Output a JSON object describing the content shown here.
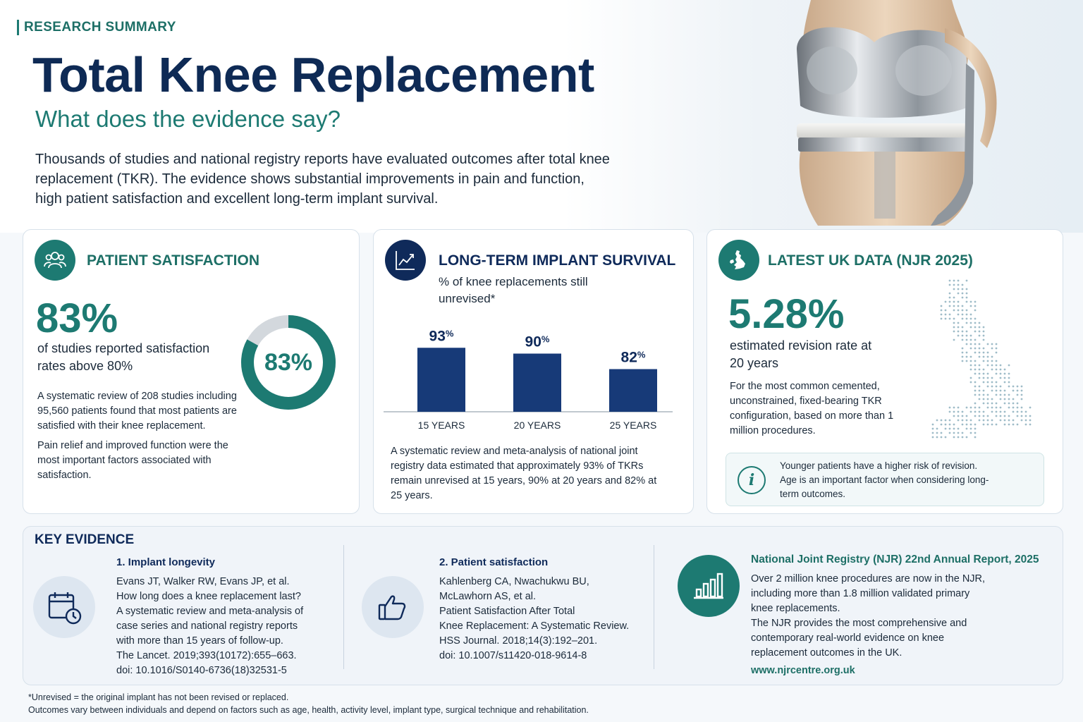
{
  "header": {
    "eyebrow": "RESEARCH SUMMARY",
    "title": "Total Knee Replacement",
    "subtitle": "What does the evidence say?",
    "intro": "Thousands of studies and national registry reports have evaluated outcomes after total knee replacement (TKR). The evidence shows substantial improvements in pain and function, high patient satisfaction and excellent long-term implant survival."
  },
  "satisfaction": {
    "heading": "PATIENT SATISFACTION",
    "icon": "people-icon",
    "big_value": "83%",
    "big_desc": "of studies reported satisfaction rates above 80%",
    "donut_fraction": 0.83,
    "donut_label": "83%",
    "para1": "A systematic review of 208 studies including 95,560 patients found that most patients are satisfied with their knee replacement.",
    "para2": "Pain relief and improved function were the most important factors associated with satisfaction.",
    "accent": "#1d7a72",
    "track": "#d3d8dd"
  },
  "survival": {
    "heading": "LONG-TERM IMPLANT SURVIVAL",
    "icon": "trend-chart-icon",
    "caption": "% of knee replacements still unrevised*",
    "note": "A systematic review and meta-analysis of national joint registry data estimated that approximately 93% of TKRs remain unrevised at 15 years, 90% at 20 years and 82% at 25 years."
  },
  "chart_data": {
    "type": "bar",
    "categories": [
      "15 YEARS",
      "20 YEARS",
      "25 YEARS"
    ],
    "values": [
      93,
      90,
      82
    ],
    "value_labels": [
      "93",
      "90",
      "82"
    ],
    "unit": "%",
    "bar_color": "#173a78",
    "ylim": [
      0,
      100
    ],
    "grid": false
  },
  "uk": {
    "heading": "LATEST UK DATA (NJR 2025)",
    "icon": "uk-map-icon",
    "big_value": "5.28%",
    "big_desc": "estimated revision rate at 20 years",
    "para": "For the most common cemented, unconstrained, fixed-bearing TKR configuration, based on more than 1 million procedures.",
    "info": "Younger patients have a higher risk of revision. Age is an important factor when considering long-term outcomes."
  },
  "evidence": {
    "title": "KEY EVIDENCE",
    "items": [
      {
        "heading": "1. Implant longevity",
        "icon": "calendar-clock-icon",
        "lines": [
          "Evans JT, Walker RW, Evans JP, et al.",
          "How long does a knee replacement last?",
          "A systematic review and meta-analysis of",
          "case series and national registry reports",
          "with more than 15 years of follow-up.",
          "The Lancet. 2019;393(10172):655–663.",
          "doi: 10.1016/S0140-6736(18)32531-5"
        ]
      },
      {
        "heading": "2. Patient satisfaction",
        "icon": "thumbs-up-icon",
        "lines": [
          "Kahlenberg CA, Nwachukwu BU,",
          "McLawhorn AS, et al.",
          "Patient Satisfaction After Total",
          "Knee Replacement: A Systematic Review.",
          "HSS Journal. 2018;14(3):192–201.",
          "doi: 10.1007/s11420-018-9614-8"
        ]
      },
      {
        "heading": "National Joint Registry (NJR) 22nd Annual Report, 2025",
        "icon": "bar-chart-icon",
        "lines": [
          "Over 2 million knee procedures are now in the NJR,",
          "including more than 1.8 million validated primary",
          "knee replacements.",
          "The NJR provides the most comprehensive and",
          "contemporary real-world evidence on knee",
          "replacement outcomes in the UK."
        ],
        "link": "www.njrcentre.org.uk"
      }
    ]
  },
  "footnotes": {
    "line1": "*Unrevised = the original implant has not been revised or replaced.",
    "line2": "Outcomes vary between individuals and depend on factors such as age, health, activity level, implant type, surgical technique and rehabilitation."
  }
}
